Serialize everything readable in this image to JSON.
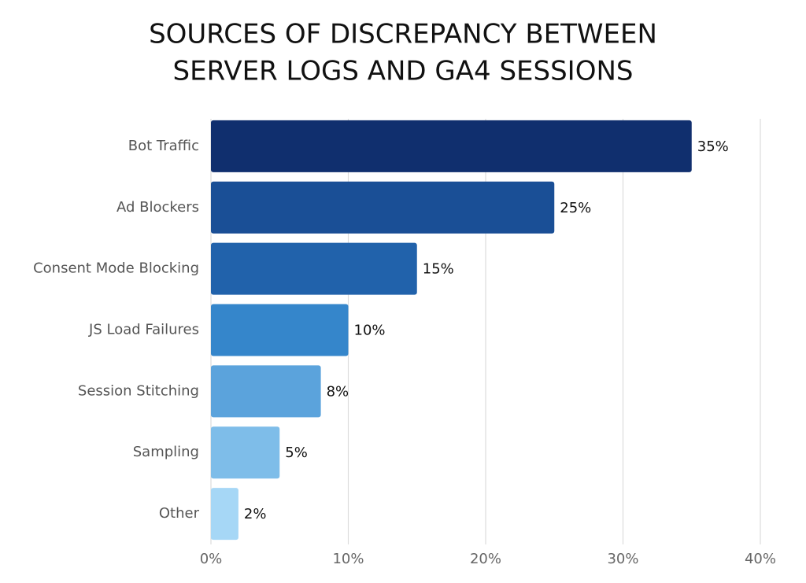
{
  "chart_data": {
    "type": "barh",
    "title": [
      "SOURCES OF DISCREPANCY BETWEEN",
      "SERVER LOGS AND GA4 SESSIONS"
    ],
    "categories": [
      "Bot Traffic",
      "Ad Blockers",
      "Consent Mode Blocking",
      "JS Load Failures",
      "Session Stitching",
      "Sampling",
      "Other"
    ],
    "values": [
      35,
      25,
      15,
      10,
      8,
      5,
      2
    ],
    "value_labels": [
      "35%",
      "25%",
      "15%",
      "10%",
      "8%",
      "5%",
      "2%"
    ],
    "colors": [
      "#102f6e",
      "#1a4f96",
      "#2162ab",
      "#3586cb",
      "#5ba3dc",
      "#7ebde9",
      "#a6d7f6"
    ],
    "xlim": [
      0,
      40
    ],
    "xticks": [
      {
        "value": 0,
        "label": "0%"
      },
      {
        "value": 10,
        "label": "10%"
      },
      {
        "value": 20,
        "label": "20%"
      },
      {
        "value": 30,
        "label": "30%"
      },
      {
        "value": 40,
        "label": "40%"
      }
    ],
    "grid": true
  }
}
